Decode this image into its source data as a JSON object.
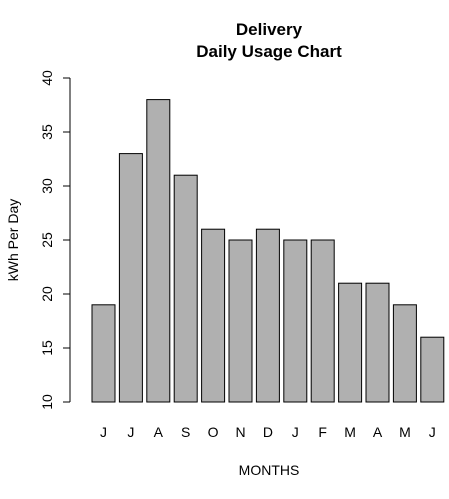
{
  "chart_data": {
    "type": "bar",
    "title": "Delivery",
    "subtitle": "Daily Usage Chart",
    "xlabel": "MONTHS",
    "ylabel": "kWh Per Day",
    "categories": [
      "J",
      "J",
      "A",
      "S",
      "O",
      "N",
      "D",
      "J",
      "F",
      "M",
      "A",
      "M",
      "J"
    ],
    "values": [
      19,
      33,
      38,
      31,
      26,
      25,
      26,
      25,
      25,
      21,
      21,
      19,
      16
    ],
    "ylim": [
      10,
      40
    ],
    "yticks": [
      10,
      15,
      20,
      25,
      30,
      35,
      40
    ],
    "grid": false,
    "bar_color": "#b0b0b0"
  }
}
